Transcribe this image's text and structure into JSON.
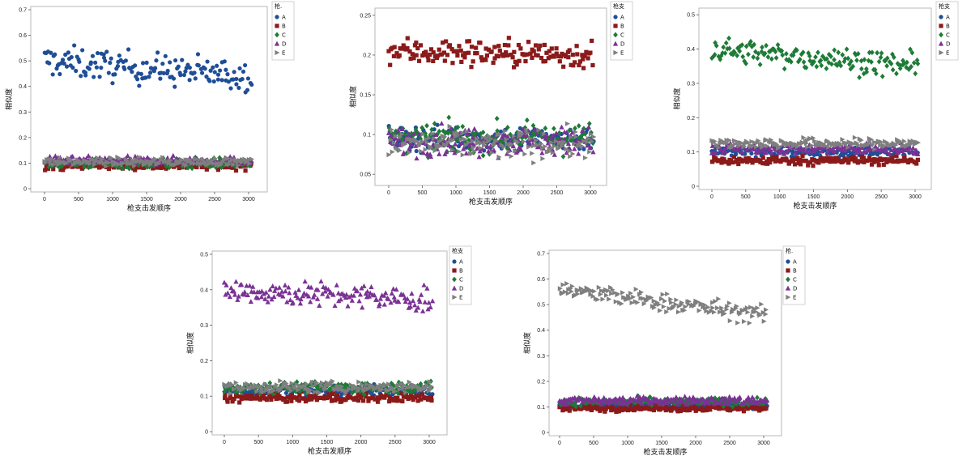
{
  "colors": {
    "A": "#1f4e96",
    "B": "#8b1a1a",
    "C": "#1e7b36",
    "D": "#7a3294",
    "E": "#7f7f7f"
  },
  "chart_data": [
    {
      "type": "scatter",
      "xlabel": "枪支击发顺序",
      "ylabel": "相似度",
      "ylim": [
        0,
        0.7
      ],
      "yticks": [
        0,
        0.1,
        0.2,
        0.3,
        0.4,
        0.5,
        0.6,
        0.7
      ],
      "xticks": [
        0,
        500,
        1000,
        1500,
        2000,
        2500,
        3000
      ],
      "grid": false,
      "legend_title": "枪.",
      "legend_position": "right",
      "series": [
        {
          "name": "A",
          "marker": "circle",
          "baseline": 0.5,
          "spread": 0.06,
          "trend": -0.06
        },
        {
          "name": "B",
          "marker": "square",
          "baseline": 0.09,
          "spread": 0.015,
          "trend": 0
        },
        {
          "name": "C",
          "marker": "diamond",
          "baseline": 0.1,
          "spread": 0.02,
          "trend": 0
        },
        {
          "name": "D",
          "marker": "triangle-up",
          "baseline": 0.11,
          "spread": 0.015,
          "trend": 0
        },
        {
          "name": "E",
          "marker": "triangle-right",
          "baseline": 0.105,
          "spread": 0.015,
          "trend": 0
        }
      ]
    },
    {
      "type": "scatter",
      "xlabel": "枪支击发顺序",
      "ylabel": "相似度",
      "ylim": [
        0.04,
        0.255
      ],
      "yticks": [
        0.05,
        0.1,
        0.15,
        0.2,
        0.25
      ],
      "xticks": [
        0,
        500,
        1000,
        1500,
        2000,
        2500,
        3000
      ],
      "grid": false,
      "legend_title": "枪支",
      "legend_position": "right",
      "series": [
        {
          "name": "A",
          "marker": "circle",
          "baseline": 0.095,
          "spread": 0.015,
          "trend": 0
        },
        {
          "name": "B",
          "marker": "square",
          "baseline": 0.205,
          "spread": 0.017,
          "trend": -0.005
        },
        {
          "name": "C",
          "marker": "diamond",
          "baseline": 0.095,
          "spread": 0.018,
          "trend": 0
        },
        {
          "name": "D",
          "marker": "triangle-up",
          "baseline": 0.092,
          "spread": 0.018,
          "trend": 0
        },
        {
          "name": "E",
          "marker": "triangle-right",
          "baseline": 0.088,
          "spread": 0.018,
          "trend": 0
        }
      ]
    },
    {
      "type": "scatter",
      "xlabel": "枪支击发顺序",
      "ylabel": "相似度",
      "ylim": [
        0,
        0.51
      ],
      "yticks": [
        0,
        0.1,
        0.2,
        0.3,
        0.4,
        0.5
      ],
      "xticks": [
        0,
        500,
        1000,
        1500,
        2000,
        2500,
        3000
      ],
      "grid": false,
      "legend_title": "枪支",
      "legend_position": "right",
      "series": [
        {
          "name": "A",
          "marker": "circle",
          "baseline": 0.1,
          "spread": 0.015,
          "trend": 0
        },
        {
          "name": "B",
          "marker": "square",
          "baseline": 0.075,
          "spread": 0.012,
          "trend": 0
        },
        {
          "name": "C",
          "marker": "diamond",
          "baseline": 0.4,
          "spread": 0.035,
          "trend": -0.05
        },
        {
          "name": "D",
          "marker": "triangle-up",
          "baseline": 0.11,
          "spread": 0.015,
          "trend": 0
        },
        {
          "name": "E",
          "marker": "triangle-right",
          "baseline": 0.125,
          "spread": 0.015,
          "trend": 0
        }
      ]
    },
    {
      "type": "scatter",
      "xlabel": "枪支击发顺序",
      "ylabel": "相似度",
      "ylim": [
        0,
        0.5
      ],
      "yticks": [
        0,
        0.1,
        0.2,
        0.3,
        0.4,
        0.5
      ],
      "xticks": [
        0,
        500,
        1000,
        1500,
        2000,
        2500,
        3000
      ],
      "grid": false,
      "legend_title": "枪支",
      "legend_position": "right",
      "series": [
        {
          "name": "A",
          "marker": "circle",
          "baseline": 0.115,
          "spread": 0.015,
          "trend": 0
        },
        {
          "name": "B",
          "marker": "square",
          "baseline": 0.095,
          "spread": 0.012,
          "trend": 0
        },
        {
          "name": "C",
          "marker": "diamond",
          "baseline": 0.125,
          "spread": 0.015,
          "trend": 0
        },
        {
          "name": "D",
          "marker": "triangle-up",
          "baseline": 0.4,
          "spread": 0.035,
          "trend": -0.03
        },
        {
          "name": "E",
          "marker": "triangle-right",
          "baseline": 0.125,
          "spread": 0.015,
          "trend": 0
        }
      ]
    },
    {
      "type": "scatter",
      "xlabel": "枪支击发顺序",
      "ylabel": "相似度",
      "ylim": [
        0,
        0.7
      ],
      "yticks": [
        0,
        0.1,
        0.2,
        0.3,
        0.4,
        0.5,
        0.6,
        0.7
      ],
      "xticks": [
        0,
        500,
        1000,
        1500,
        2000,
        2500,
        3000
      ],
      "grid": false,
      "legend_title": "枪.",
      "legend_position": "right",
      "series": [
        {
          "name": "A",
          "marker": "circle",
          "baseline": 0.105,
          "spread": 0.012,
          "trend": 0
        },
        {
          "name": "B",
          "marker": "square",
          "baseline": 0.095,
          "spread": 0.012,
          "trend": 0
        },
        {
          "name": "C",
          "marker": "diamond",
          "baseline": 0.12,
          "spread": 0.015,
          "trend": 0
        },
        {
          "name": "D",
          "marker": "triangle-up",
          "baseline": 0.125,
          "spread": 0.015,
          "trend": 0
        },
        {
          "name": "E",
          "marker": "triangle-right",
          "baseline": 0.56,
          "spread": 0.035,
          "trend": -0.1
        }
      ]
    }
  ]
}
